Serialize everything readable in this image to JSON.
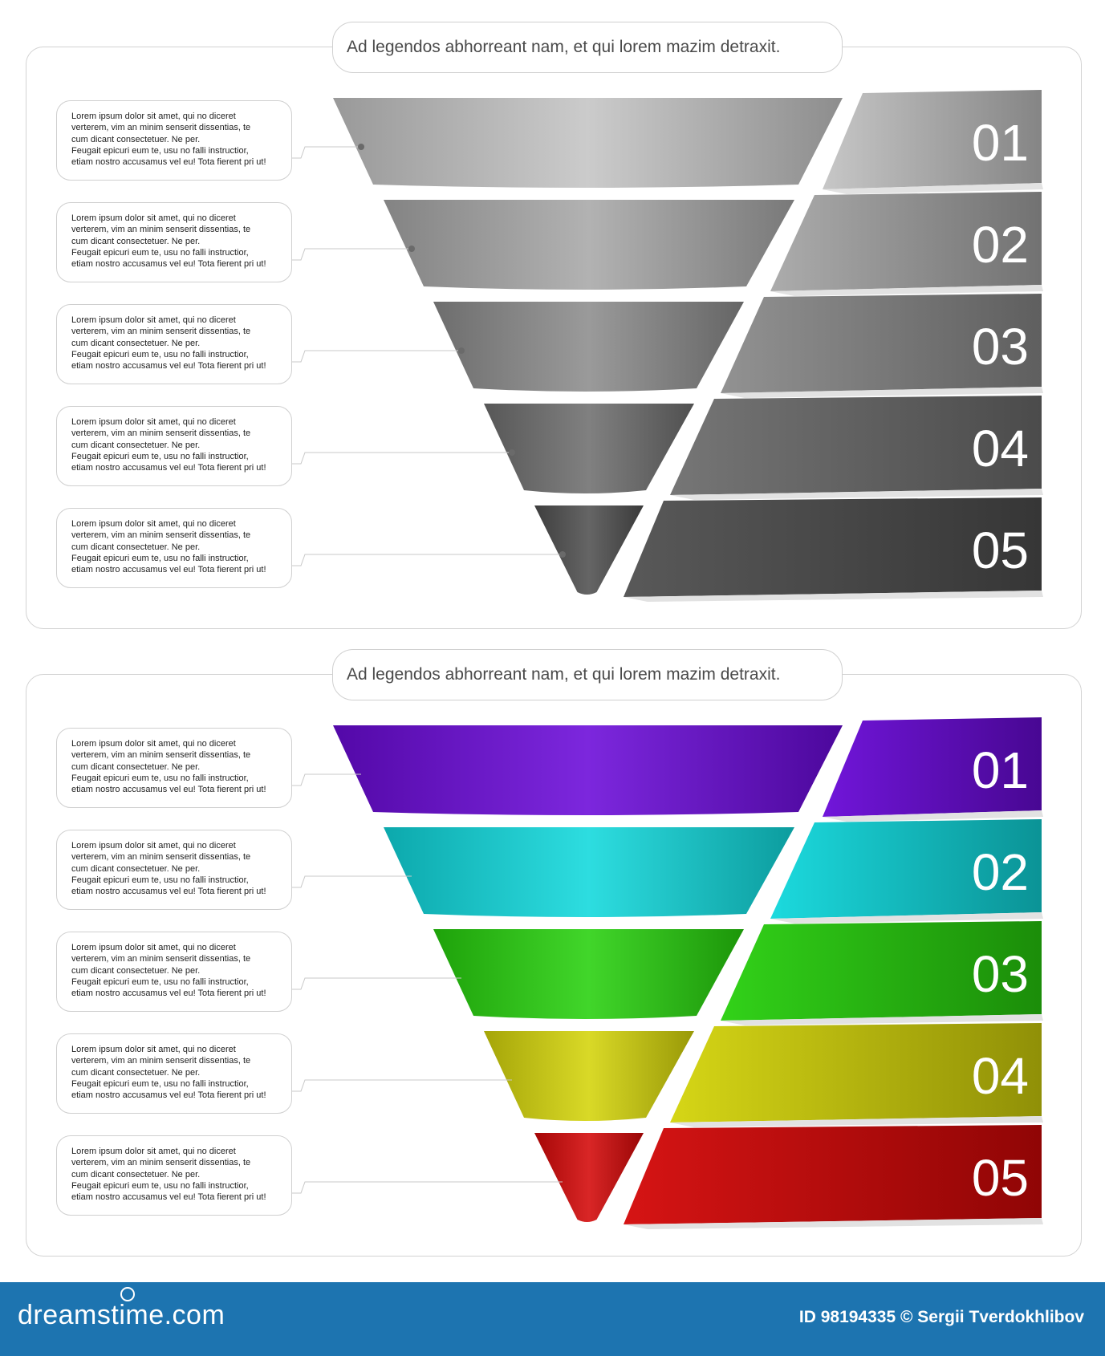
{
  "sections": [
    {
      "title": "Ad legendos abhorreant nam, et qui lorem mazim detraxit.",
      "steps": [
        {
          "number": "01",
          "color": "#c4c4c4"
        },
        {
          "number": "02",
          "color": "#a8a8a8"
        },
        {
          "number": "03",
          "color": "#8c8c8c"
        },
        {
          "number": "04",
          "color": "#6f6f6f"
        },
        {
          "number": "05",
          "color": "#505050"
        }
      ]
    },
    {
      "title": "Ad legendos abhorreant nam, et qui lorem mazim detraxit.",
      "steps": [
        {
          "number": "01",
          "color": "#6a0ad8"
        },
        {
          "number": "02",
          "color": "#10d8dc"
        },
        {
          "number": "03",
          "color": "#27d00d"
        },
        {
          "number": "04",
          "color": "#d4d40a"
        },
        {
          "number": "05",
          "color": "#d40808"
        }
      ]
    }
  ],
  "description_lines": [
    "Lorem ipsum dolor sit amet, qui no diceret",
    "verterem, vim an minim senserit dissentias, te",
    "cum dicant consectetuer. Ne per.",
    "Feugait epicuri eum te, usu no falli instructior,",
    "etiam nostro accusamus vel eu! Tota fierent pri ut!"
  ],
  "footer": {
    "brand": "dreamstime.com",
    "credit": "ID 98194335 © Sergii Tverdokhlibov"
  }
}
